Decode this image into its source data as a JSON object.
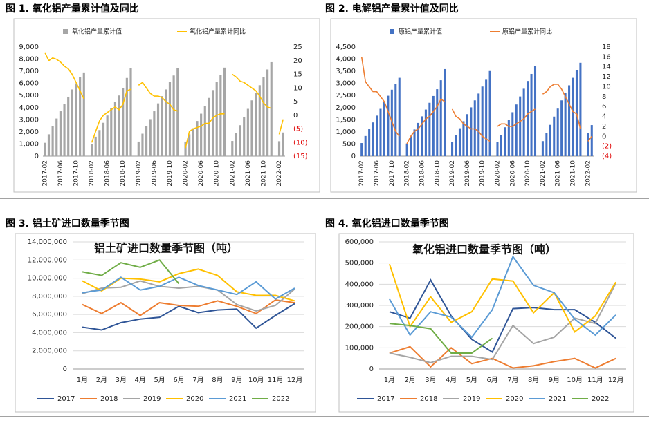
{
  "chart_data": [
    {
      "type": "combo",
      "title": "图 1. 氧化铝产量累计值及同比",
      "categories": [
        "2017-02",
        null,
        null,
        null,
        "2017-06",
        null,
        null,
        null,
        "2017-10",
        null,
        null,
        null,
        "2018-02",
        null,
        null,
        null,
        "2018-06",
        null,
        null,
        null,
        "2018-10",
        null,
        null,
        null,
        "2019-02",
        null,
        null,
        null,
        "2019-06",
        null,
        null,
        null,
        "2019-10",
        null,
        null,
        null,
        "2020-02",
        null,
        null,
        null,
        "2020-06",
        null,
        null,
        null,
        "2020-10",
        null,
        null,
        null,
        "2021-02",
        null,
        null,
        null,
        "2021-06",
        null,
        null,
        null,
        "2021-10",
        null,
        null,
        null,
        "2022-02",
        null
      ],
      "series": [
        {
          "name": "氧化铝产量累计值",
          "color": "#a6a6a6",
          "values": [
            1100,
            1800,
            2450,
            3100,
            3700,
            4300,
            4900,
            5500,
            6000,
            6500,
            6900,
            null,
            1000,
            1600,
            2150,
            2750,
            3350,
            3950,
            4450,
            5000,
            5600,
            6450,
            7250,
            null,
            1200,
            1850,
            2450,
            3050,
            3700,
            4350,
            4950,
            5500,
            6100,
            6650,
            7250,
            null,
            1200,
            1800,
            2300,
            2900,
            3500,
            4150,
            4800,
            5450,
            6100,
            6700,
            7300,
            null,
            1250,
            1900,
            2550,
            3200,
            3900,
            4600,
            5200,
            5850,
            6500,
            7150,
            7750,
            null,
            1230,
            1950
          ]
        },
        {
          "name": "氧化铝产量累计同比",
          "color": "#ffc000",
          "axis": "y2",
          "values": [
            23,
            20,
            21,
            20.5,
            19.5,
            18,
            17,
            15,
            12,
            9,
            6,
            null,
            -10,
            -6,
            -2,
            0,
            1,
            2,
            3,
            2,
            4,
            9,
            9.5,
            null,
            11,
            12,
            10,
            8,
            7,
            7,
            6.5,
            5,
            4,
            2,
            1.5,
            null,
            -12,
            -6,
            -5,
            -4.5,
            -4,
            -3,
            -3,
            -1,
            0,
            0.5,
            0.5,
            null,
            15,
            14,
            12.5,
            12,
            11,
            10,
            9,
            7,
            4.5,
            3,
            2.5,
            null,
            -7,
            -1.5
          ]
        }
      ],
      "ylim": [
        0,
        9000
      ],
      "yticks": [
        0,
        {
          "value": 1000,
          "label": "1,000"
        },
        {
          "value": 2000,
          "label": "2,000"
        },
        {
          "value": 3000,
          "label": "3,000"
        },
        {
          "value": 4000,
          "label": "4,000"
        },
        {
          "value": 5000,
          "label": "5,000"
        },
        {
          "value": 6000,
          "label": "6,000"
        },
        {
          "value": 7000,
          "label": "7,000"
        },
        {
          "value": 8000,
          "label": "8,000"
        },
        {
          "value": 9000,
          "label": "9,000"
        }
      ],
      "y2lim": [
        -15,
        25
      ],
      "y2ticks": [
        {
          "value": -15,
          "label": "(15)"
        },
        {
          "value": -10,
          "label": "(10)"
        },
        {
          "value": -5,
          "label": "(5)"
        },
        0,
        5,
        10,
        15,
        20,
        25
      ],
      "grid": false
    },
    {
      "type": "combo",
      "title": "图 2. 电解铝产量累计值及同比",
      "categories": [
        "2017-02",
        null,
        null,
        null,
        "2017-06",
        null,
        null,
        null,
        "2017-10",
        null,
        null,
        null,
        "2018-02",
        null,
        null,
        null,
        "2018-06",
        null,
        null,
        null,
        "2018-10",
        null,
        null,
        null,
        "2019-02",
        null,
        null,
        null,
        "2019-06",
        null,
        null,
        null,
        "2019-10",
        null,
        null,
        null,
        "2020-02",
        null,
        null,
        null,
        "2020-06",
        null,
        null,
        null,
        "2020-10",
        null,
        null,
        null,
        "2021-02",
        null,
        null,
        null,
        "2021-06",
        null,
        null,
        null,
        "2021-10",
        null,
        null,
        null,
        "2022-02",
        null
      ],
      "series": [
        {
          "name": "原铝产量累计值",
          "color": "#4472c4",
          "values": [
            540,
            830,
            1110,
            1390,
            1670,
            1950,
            2230,
            2490,
            2740,
            2990,
            3230,
            null,
            520,
            820,
            1100,
            1370,
            1640,
            1920,
            2200,
            2480,
            2760,
            3130,
            3590,
            null,
            580,
            880,
            1150,
            1440,
            1730,
            2010,
            2300,
            2580,
            2870,
            3150,
            3510,
            null,
            580,
            880,
            1190,
            1500,
            1810,
            2130,
            2460,
            2780,
            3100,
            3390,
            3710,
            null,
            620,
            960,
            1290,
            1630,
            1960,
            2300,
            2620,
            2920,
            3230,
            3560,
            3850,
            null,
            960,
            1280
          ]
        },
        {
          "name": "原铝产量累计同比",
          "color": "#ed7d31",
          "axis": "y2",
          "values": [
            16,
            11,
            10,
            9,
            9,
            8,
            7,
            5,
            3,
            1,
            0,
            null,
            -1.5,
            0,
            1,
            1.5,
            2.5,
            3.5,
            4,
            5,
            6,
            7.5,
            7,
            null,
            5.5,
            4,
            3.5,
            2.5,
            2,
            1.5,
            1.5,
            1,
            0,
            -0.5,
            -1,
            null,
            2,
            2.5,
            2.5,
            2,
            2,
            2.5,
            3,
            3.5,
            4.5,
            5,
            5.5,
            null,
            8.5,
            9,
            10,
            10.5,
            10.5,
            9.5,
            8,
            6.5,
            5,
            4.5,
            1.5,
            null,
            -1,
            0
          ]
        }
      ],
      "ylim": [
        0,
        4500
      ],
      "yticks": [
        0,
        500,
        {
          "value": 1000,
          "label": "1,000"
        },
        {
          "value": 1500,
          "label": "1,500"
        },
        {
          "value": 2000,
          "label": "2,000"
        },
        {
          "value": 2500,
          "label": "2,500"
        },
        {
          "value": 3000,
          "label": "3,000"
        },
        {
          "value": 3500,
          "label": "3,500"
        },
        {
          "value": 4000,
          "label": "4,000"
        },
        {
          "value": 4500,
          "label": "4,500"
        }
      ],
      "y2lim": [
        -4,
        18
      ],
      "y2ticks": [
        {
          "value": -4,
          "label": "(4)"
        },
        {
          "value": -2,
          "label": "(2)"
        },
        0,
        2,
        4,
        6,
        8,
        10,
        12,
        14,
        16,
        18
      ],
      "grid": false
    },
    {
      "type": "line",
      "title": "图 3. 铝土矿进口数量季节图",
      "subtitle": "铝土矿进口数量季节图（吨）",
      "categories": [
        "1月",
        "2月",
        "3月",
        "4月",
        "5月",
        "6月",
        "7月",
        "8月",
        "9月",
        "10月",
        "11月",
        "12月"
      ],
      "series": [
        {
          "name": "2017",
          "color": "#2f5597",
          "values": [
            4600000,
            4300000,
            5100000,
            5500000,
            5700000,
            6900000,
            6200000,
            6500000,
            6600000,
            4500000,
            5900000,
            7200000
          ]
        },
        {
          "name": "2018",
          "color": "#ed7d31",
          "values": [
            7100000,
            6100000,
            7300000,
            5900000,
            7300000,
            7000000,
            6900000,
            7500000,
            6900000,
            6100000,
            7600000,
            7300000
          ]
        },
        {
          "name": "2019",
          "color": "#a5a5a5",
          "values": [
            8300000,
            8900000,
            9000000,
            9700000,
            9100000,
            8900000,
            9100000,
            8700000,
            7100000,
            6400000,
            7000000,
            8800000
          ]
        },
        {
          "name": "2020",
          "color": "#ffc000",
          "values": [
            9700000,
            8600000,
            10000000,
            9900000,
            9600000,
            10500000,
            11000000,
            10300000,
            8500000,
            8100000,
            8100000,
            7500000
          ]
        },
        {
          "name": "2021",
          "color": "#5b9bd5",
          "values": [
            8400000,
            8700000,
            10100000,
            8700000,
            9100000,
            10100000,
            9200000,
            8700000,
            8200000,
            9600000,
            7700000,
            8900000
          ]
        },
        {
          "name": "2022",
          "color": "#70ad47",
          "values": [
            10700000,
            10300000,
            11700000,
            11200000,
            12000000,
            9400000,
            null,
            null,
            null,
            null,
            null,
            null
          ]
        }
      ],
      "ylim": [
        0,
        14000000
      ],
      "yticks": [
        0,
        {
          "value": 2000000,
          "label": "2,000,000"
        },
        {
          "value": 4000000,
          "label": "4,000,000"
        },
        {
          "value": 6000000,
          "label": "6,000,000"
        },
        {
          "value": 8000000,
          "label": "8,000,000"
        },
        {
          "value": 10000000,
          "label": "10,000,000"
        },
        {
          "value": 12000000,
          "label": "12,000,000"
        },
        {
          "value": 14000000,
          "label": "14,000,000"
        }
      ],
      "grid": true
    },
    {
      "type": "line",
      "title": "图 4. 氧化铝进口数量季节图",
      "subtitle": "氧化铝进口数量季节图（吨）",
      "categories": [
        "1月",
        "2月",
        "3月",
        "4月",
        "5月",
        "6月",
        "7月",
        "8月",
        "9月",
        "10月",
        "11月",
        "12月"
      ],
      "series": [
        {
          "name": "2017",
          "color": "#2f5597",
          "values": [
            270000,
            240000,
            420000,
            250000,
            140000,
            80000,
            285000,
            290000,
            280000,
            280000,
            220000,
            145000
          ]
        },
        {
          "name": "2018",
          "color": "#ed7d31",
          "values": [
            75000,
            105000,
            10000,
            100000,
            25000,
            50000,
            5000,
            15000,
            35000,
            50000,
            5000,
            50000
          ]
        },
        {
          "name": "2019",
          "color": "#a5a5a5",
          "values": [
            75000,
            55000,
            30000,
            60000,
            60000,
            45000,
            205000,
            120000,
            150000,
            240000,
            215000,
            405000
          ]
        },
        {
          "name": "2020",
          "color": "#ffc000",
          "values": [
            495000,
            200000,
            340000,
            220000,
            270000,
            425000,
            415000,
            265000,
            360000,
            175000,
            250000,
            410000
          ]
        },
        {
          "name": "2021",
          "color": "#5b9bd5",
          "values": [
            330000,
            160000,
            270000,
            245000,
            150000,
            280000,
            530000,
            395000,
            360000,
            235000,
            160000,
            255000
          ]
        },
        {
          "name": "2022",
          "color": "#70ad47",
          "values": [
            215000,
            205000,
            190000,
            75000,
            75000,
            145000,
            null,
            null,
            null,
            null,
            null,
            null
          ]
        }
      ],
      "ylim": [
        0,
        600000
      ],
      "yticks": [
        0,
        {
          "value": 100000,
          "label": "100,000"
        },
        {
          "value": 200000,
          "label": "200,000"
        },
        {
          "value": 300000,
          "label": "300,000"
        },
        {
          "value": 400000,
          "label": "400,000"
        },
        {
          "value": 500000,
          "label": "500,000"
        },
        {
          "value": 600000,
          "label": "600,000"
        }
      ],
      "grid": true
    }
  ]
}
